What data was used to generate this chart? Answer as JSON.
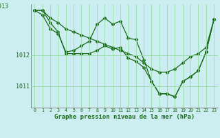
{
  "xlabel": "Graphe pression niveau de la mer (hPa)",
  "background_color": "#cceef0",
  "grid_color": "#99ddaa",
  "line_color": "#1a6b1a",
  "marker_color": "#1a6b1a",
  "ylim": [
    1010.3,
    1013.65
  ],
  "xlim": [
    -0.5,
    23.5
  ],
  "yticks": [
    1011,
    1012
  ],
  "ytick_labels": [
    "1011",
    "1012"
  ],
  "series1_x": [
    0,
    1,
    2,
    3,
    4,
    5,
    6,
    7,
    8,
    9,
    10,
    11,
    12,
    13,
    14,
    15,
    16,
    17,
    18,
    19,
    20,
    21,
    22,
    23
  ],
  "series1_y": [
    1013.45,
    1013.45,
    1013.2,
    1013.05,
    1012.85,
    1012.75,
    1012.65,
    1012.55,
    1012.45,
    1012.35,
    1012.25,
    1012.15,
    1012.05,
    1011.95,
    1011.75,
    1011.55,
    1011.45,
    1011.45,
    1011.55,
    1011.75,
    1011.95,
    1012.05,
    1012.25,
    1013.15
  ],
  "series2_x": [
    0,
    1,
    2,
    3,
    4,
    5,
    6,
    7,
    8,
    9,
    10,
    11,
    12,
    13,
    14,
    15,
    16,
    17,
    18,
    19,
    20,
    21,
    22,
    23
  ],
  "series2_y": [
    1013.45,
    1013.45,
    1013.05,
    1012.75,
    1012.05,
    1012.05,
    1012.05,
    1012.05,
    1012.15,
    1012.3,
    1012.2,
    1012.25,
    1011.9,
    1011.8,
    1011.6,
    1011.15,
    1010.75,
    1010.75,
    1010.65,
    1011.15,
    1011.3,
    1011.5,
    1012.1,
    1013.15
  ],
  "series3_x": [
    0,
    1,
    2,
    3,
    4,
    5,
    6,
    7,
    8,
    9,
    10,
    11,
    12,
    13,
    14,
    15,
    16,
    17,
    18,
    19,
    20,
    21,
    22,
    23
  ],
  "series3_y": [
    1013.45,
    1013.3,
    1012.85,
    1012.7,
    1012.1,
    1012.15,
    1012.3,
    1012.45,
    1013.0,
    1013.2,
    1013.0,
    1013.1,
    1012.55,
    1012.5,
    1011.85,
    1011.15,
    1010.75,
    1010.75,
    1010.65,
    1011.15,
    1011.3,
    1011.5,
    1012.1,
    1013.15
  ]
}
